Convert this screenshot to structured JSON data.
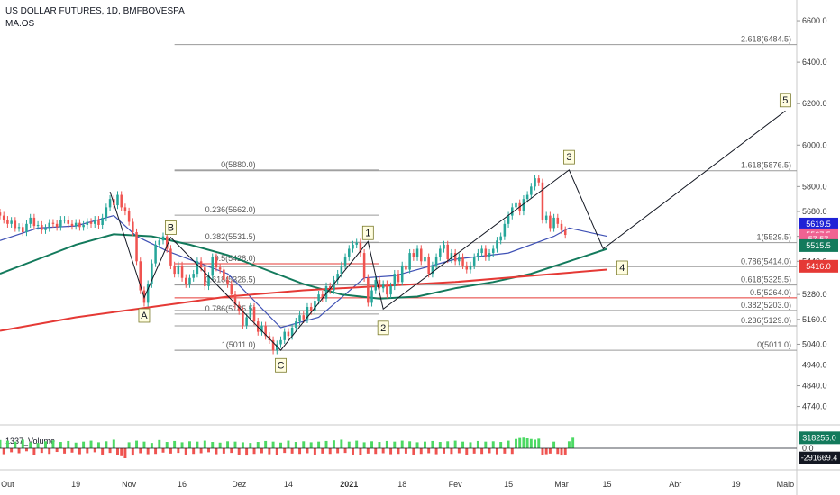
{
  "header": {
    "title": "US DOLLAR FUTURES, 1D, BMFBOVESPA",
    "indicator": "MA.OS"
  },
  "volume_indicator_label": "1337_Volume",
  "colors": {
    "up": "#26a69a",
    "down": "#ef5350",
    "ma_blue": "#3f51b5",
    "ma_green": "#137a5c",
    "ma_red": "#e53935",
    "vol_up": "#4cd964",
    "vol_down": "#ef5350",
    "badge_blue": "#1e22d6",
    "badge_pink": "#f06292",
    "badge_green": "#137a5c",
    "badge_red": "#e53935",
    "badge_black": "#131722",
    "wave_label_bg": "#fffde0"
  },
  "chart_data": [
    {
      "type": "line",
      "title": "",
      "ylim": [
        4660,
        6700
      ],
      "y_ticks": [
        "6600.0",
        "6400.0",
        "6200.0",
        "6000.0",
        "5800.0",
        "5680.0",
        "5560.0",
        "5440.0",
        "5280.0",
        "5160.0",
        "5040.0",
        "4940.0",
        "4840.0",
        "4740.0"
      ],
      "y_tick_values": [
        6600,
        6400,
        6200,
        6000,
        5800,
        5680,
        5560,
        5440,
        5280,
        5160,
        5040,
        4940,
        4840,
        4740
      ],
      "x_range": [
        0,
        165
      ],
      "x_ticks": [
        {
          "label": "Out",
          "day": 2
        },
        {
          "label": "19",
          "day": 20
        },
        {
          "label": "Nov",
          "day": 34
        },
        {
          "label": "16",
          "day": 48
        },
        {
          "label": "Dez",
          "day": 63
        },
        {
          "label": "14",
          "day": 76
        },
        {
          "label": "2021",
          "day": 92
        },
        {
          "label": "18",
          "day": 106
        },
        {
          "label": "Fev",
          "day": 120
        },
        {
          "label": "15",
          "day": 134
        },
        {
          "label": "Mar",
          "day": 148
        },
        {
          "label": "15",
          "day": 160
        },
        {
          "label": "Abr",
          "day": 178
        },
        {
          "label": "19",
          "day": 194
        },
        {
          "label": "Maio",
          "day": 207
        }
      ],
      "price_badges": [
        {
          "text": "5619.5",
          "value": 5619.5,
          "color_key": "badge_blue"
        },
        {
          "text": "5567.5",
          "value": 5567.5,
          "color_key": "badge_pink"
        },
        {
          "text": "57:57",
          "value": 5545,
          "color_key": "badge_pink"
        },
        {
          "text": "5515.5",
          "value": 5515.5,
          "color_key": "badge_green"
        },
        {
          "text": "5416.0",
          "value": 5416.0,
          "color_key": "badge_red"
        }
      ],
      "fib_sets": [
        {
          "name": "retracement-1",
          "x_from": 46,
          "x_to": 100,
          "label_side": "left",
          "levels": [
            {
              "label": "0(5880.0)",
              "value": 5880.0
            },
            {
              "label": "0.236(5662.0)",
              "value": 5662.0
            },
            {
              "label": "0.382(5531.5)",
              "value": 5531.5
            },
            {
              "label": "0.5(5428.0)",
              "value": 5428.0,
              "highlight": true
            },
            {
              "label": "0.618(5326.5)",
              "value": 5326.5
            },
            {
              "label": "0.786(5185.5)",
              "value": 5185.5
            },
            {
              "label": "1(5011.0)",
              "value": 5011.0
            }
          ]
        },
        {
          "name": "extension-1",
          "x_from": 46,
          "x_to": 220,
          "label_side": "right",
          "levels": [
            {
              "label": "2.618(6484.5)",
              "value": 6484.5
            },
            {
              "label": "1.618(5876.5)",
              "value": 5876.5
            },
            {
              "label": "1(5529.5)",
              "value": 5529.5
            },
            {
              "label": "0.786(5414.0)",
              "value": 5414.0
            },
            {
              "label": "0.618(5325.5)",
              "value": 5325.5
            },
            {
              "label": "0.5(5264.0)",
              "value": 5264.0,
              "highlight": true
            },
            {
              "label": "0.382(5203.0)",
              "value": 5203.0
            },
            {
              "label": "0.236(5129.0)",
              "value": 5129.0
            },
            {
              "label": "0(5011.0)",
              "value": 5011.0
            }
          ]
        }
      ],
      "wave_labels": [
        {
          "label": "A",
          "day": 38,
          "value": 5220,
          "pos": "below"
        },
        {
          "label": "B",
          "day": 45,
          "value": 5565,
          "pos": "above"
        },
        {
          "label": "C",
          "day": 74,
          "value": 4980,
          "pos": "below"
        },
        {
          "label": "1",
          "day": 97,
          "value": 5540,
          "pos": "above"
        },
        {
          "label": "2",
          "day": 101,
          "value": 5160,
          "pos": "below"
        },
        {
          "label": "3",
          "day": 150,
          "value": 5905,
          "pos": "above"
        },
        {
          "label": "4",
          "day": 164,
          "value": 5450,
          "pos": "below"
        },
        {
          "label": "5",
          "day": 207,
          "value": 6180,
          "pos": "above"
        }
      ],
      "wave_path": [
        {
          "day": 29,
          "value": 5775
        },
        {
          "day": 38,
          "value": 5265
        },
        {
          "day": 45,
          "value": 5555
        },
        {
          "day": 74,
          "value": 5011
        },
        {
          "day": 97,
          "value": 5535
        },
        {
          "day": 101,
          "value": 5210
        },
        {
          "day": 150,
          "value": 5880
        },
        {
          "day": 159,
          "value": 5500
        },
        {
          "day": 207,
          "value": 6165
        }
      ],
      "series": [
        {
          "kind": "candles",
          "start_day": 0,
          "closes": [
            5660,
            5640,
            5620,
            5635,
            5600,
            5605,
            5580,
            5620,
            5650,
            5610,
            5615,
            5590,
            5600,
            5625,
            5620,
            5605,
            5640,
            5640,
            5620,
            5610,
            5625,
            5605,
            5615,
            5630,
            5620,
            5640,
            5615,
            5650,
            5700,
            5740,
            5710,
            5760,
            5700,
            5680,
            5630,
            5580,
            5440,
            5300,
            5240,
            5330,
            5430,
            5520,
            5540,
            5560,
            5500,
            5420,
            5380,
            5420,
            5360,
            5330,
            5360,
            5380,
            5440,
            5410,
            5320,
            5370,
            5460,
            5410,
            5400,
            5350,
            5330,
            5280,
            5230,
            5200,
            5130,
            5170,
            5220,
            5150,
            5100,
            5130,
            5080,
            5060,
            5010,
            5040,
            5060,
            5100,
            5080,
            5120,
            5150,
            5180,
            5160,
            5220,
            5200,
            5250,
            5280,
            5260,
            5320,
            5300,
            5350,
            5380,
            5420,
            5460,
            5500,
            5520,
            5530,
            5480,
            5360,
            5240,
            5300,
            5350,
            5310,
            5330,
            5280,
            5320,
            5380,
            5340,
            5420,
            5400,
            5480,
            5460,
            5500,
            5440,
            5460,
            5380,
            5420,
            5460,
            5500,
            5520,
            5450,
            5480,
            5440,
            5460,
            5420,
            5400,
            5420,
            5460,
            5480,
            5500,
            5460,
            5480,
            5500,
            5540,
            5560,
            5620,
            5660,
            5700,
            5720,
            5680,
            5740,
            5760,
            5800,
            5840,
            5820,
            5640,
            5660,
            5600,
            5650,
            5620,
            5590,
            5567
          ],
          "x_step": 1
        },
        {
          "name": "MA blue",
          "kind": "line",
          "values_sample_days": [
            0,
            10,
            20,
            30,
            36,
            44,
            60,
            74,
            84,
            96,
            104,
            120,
            134,
            146,
            150,
            160
          ],
          "values": [
            5540,
            5600,
            5610,
            5660,
            5560,
            5490,
            5380,
            5120,
            5170,
            5360,
            5370,
            5450,
            5480,
            5560,
            5600,
            5560
          ]
        },
        {
          "name": "MA green",
          "kind": "line",
          "values_sample_days": [
            0,
            10,
            20,
            30,
            40,
            50,
            60,
            70,
            80,
            90,
            100,
            110,
            120,
            130,
            140,
            150,
            160
          ],
          "values": [
            5380,
            5450,
            5520,
            5570,
            5560,
            5520,
            5470,
            5400,
            5330,
            5280,
            5260,
            5270,
            5310,
            5340,
            5380,
            5440,
            5500
          ]
        },
        {
          "name": "MA red",
          "kind": "line",
          "values_sample_days": [
            0,
            20,
            40,
            60,
            80,
            100,
            120,
            140,
            160
          ],
          "values": [
            5105,
            5170,
            5220,
            5270,
            5300,
            5320,
            5340,
            5370,
            5400
          ]
        }
      ]
    },
    {
      "type": "bar",
      "title": "1337_Volume",
      "ylim": [
        -600000,
        600000
      ],
      "y_ticks": [
        "318255.0",
        "0.0",
        "-291669.4"
      ],
      "badges": [
        {
          "text": "318255.0",
          "value": 318255.0,
          "color_key": "badge_green"
        },
        {
          "text": "-291669.4",
          "value": -291669.4,
          "color_key": "badge_black"
        }
      ],
      "values": [
        250000,
        -180000,
        230000,
        -120000,
        200000,
        -150000,
        260000,
        -90000,
        180000,
        -200000,
        160000,
        -140000,
        210000,
        -170000,
        240000,
        -110000,
        190000,
        -160000,
        220000,
        -130000,
        170000,
        -180000,
        200000,
        -150000,
        230000,
        -120000,
        180000,
        -190000,
        210000,
        -140000,
        260000,
        -200000,
        -240000,
        -300000,
        180000,
        -220000,
        230000,
        -150000,
        200000,
        -180000,
        160000,
        -170000,
        250000,
        -130000,
        190000,
        -160000,
        220000,
        -140000,
        180000,
        -190000,
        210000,
        -170000,
        200000,
        -150000,
        230000,
        -120000,
        190000,
        -180000,
        170000,
        -160000,
        210000,
        -140000,
        200000,
        -190000,
        180000,
        -220000,
        160000,
        -170000,
        190000,
        -150000,
        220000,
        -180000,
        200000,
        -210000,
        170000,
        -140000,
        230000,
        -160000,
        190000,
        -170000,
        210000,
        -150000,
        180000,
        -190000,
        200000,
        -160000,
        220000,
        -170000,
        240000,
        -150000,
        260000,
        -140000,
        200000,
        -190000,
        230000,
        -210000,
        180000,
        -160000,
        210000,
        -170000,
        190000,
        -150000,
        220000,
        -180000,
        200000,
        -170000,
        230000,
        -160000,
        210000,
        -190000,
        180000,
        -170000,
        200000,
        -150000,
        220000,
        -180000,
        190000,
        -160000,
        210000,
        -170000,
        230000,
        -150000,
        200000,
        -190000,
        180000,
        -160000,
        220000,
        -170000,
        200000,
        -150000,
        210000,
        -180000,
        190000,
        -160000,
        230000,
        -170000,
        280000,
        310000,
        320000,
        300000,
        280000,
        260000,
        290000,
        -200000,
        -180000,
        -160000,
        200000,
        -170000,
        -220000,
        -190000,
        210000,
        318255
      ]
    }
  ]
}
